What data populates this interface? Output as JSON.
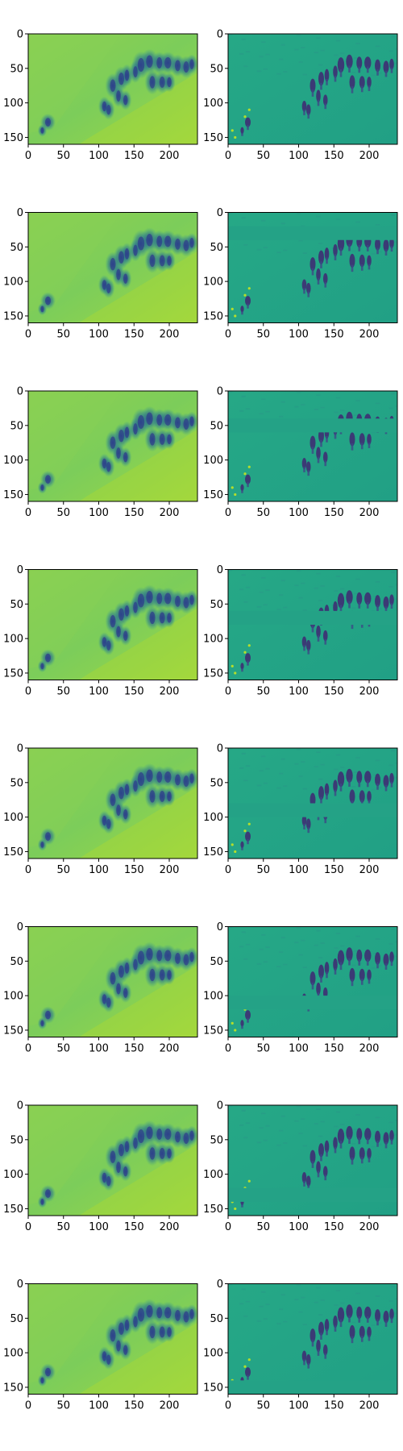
{
  "chart_data": {
    "type": "heatmap",
    "rows": 8,
    "cols": 2,
    "colormap": "viridis",
    "image_width": 240,
    "image_height": 160,
    "xticks": [
      0,
      50,
      100,
      150,
      200
    ],
    "yticks": [
      0,
      50,
      100,
      150
    ],
    "xlim": [
      0,
      240
    ],
    "ylim": [
      160,
      0
    ],
    "grid": false,
    "colors": {
      "left_background": "#7cce5a",
      "left_dark": "#2a6d8c",
      "right_background": "#22a187",
      "right_dark": "#3f2f74"
    },
    "panels": [
      {
        "row": 1,
        "col": 1,
        "band_y": null
      },
      {
        "row": 1,
        "col": 2,
        "band_y": null
      },
      {
        "row": 2,
        "col": 1,
        "band_y": null
      },
      {
        "row": 2,
        "col": 2,
        "band_y": [
          20,
          40
        ]
      },
      {
        "row": 3,
        "col": 1,
        "band_y": null
      },
      {
        "row": 3,
        "col": 2,
        "band_y": [
          40,
          60
        ]
      },
      {
        "row": 4,
        "col": 1,
        "band_y": null
      },
      {
        "row": 4,
        "col": 2,
        "band_y": [
          60,
          80
        ]
      },
      {
        "row": 5,
        "col": 1,
        "band_y": null
      },
      {
        "row": 5,
        "col": 2,
        "band_y": [
          80,
          100
        ]
      },
      {
        "row": 6,
        "col": 1,
        "band_y": null
      },
      {
        "row": 6,
        "col": 2,
        "band_y": [
          100,
          120
        ]
      },
      {
        "row": 7,
        "col": 1,
        "band_y": null
      },
      {
        "row": 7,
        "col": 2,
        "band_y": [
          120,
          140
        ]
      },
      {
        "row": 8,
        "col": 1,
        "band_y": null
      },
      {
        "row": 8,
        "col": 2,
        "band_y": [
          140,
          160
        ]
      }
    ]
  }
}
